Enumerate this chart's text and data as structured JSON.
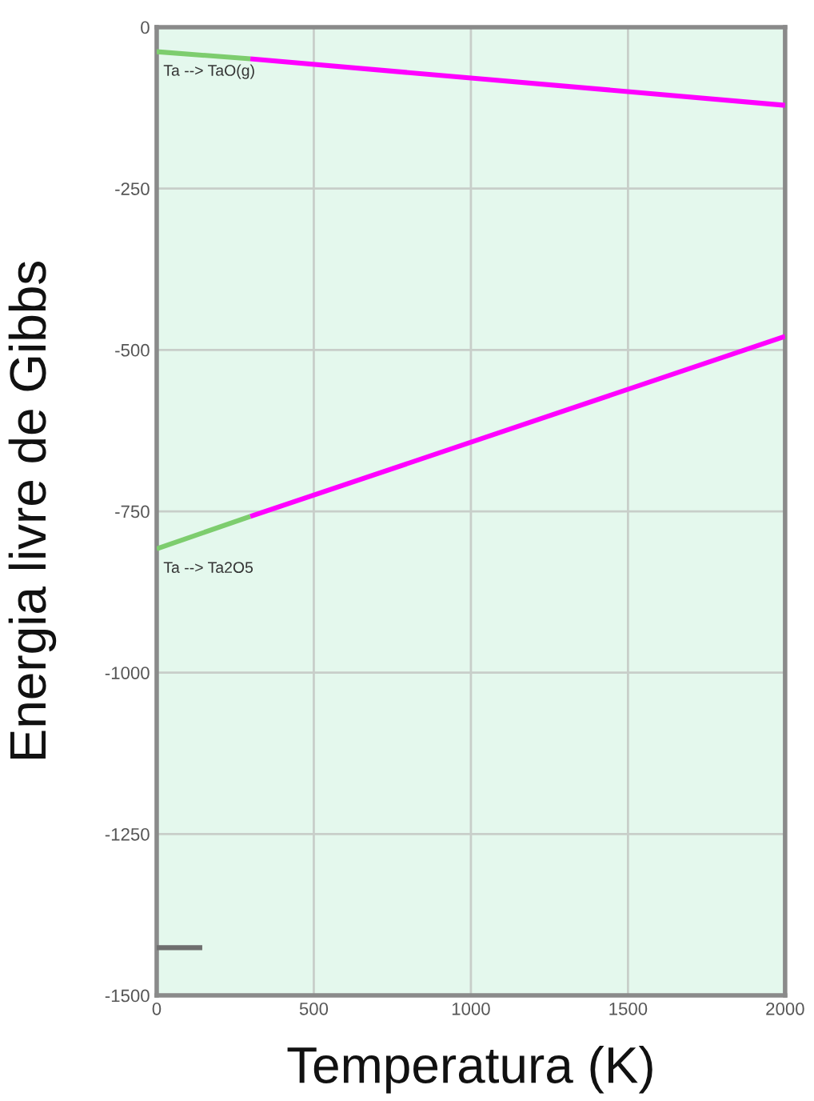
{
  "chart_data": {
    "type": "line",
    "xlabel": "Temperatura (K)",
    "ylabel": "Energia livre de Gibbs",
    "xlim": [
      0,
      2000
    ],
    "xticks": [
      0,
      500,
      1000,
      1500,
      2000
    ],
    "ylim": [
      -1500,
      0
    ],
    "yticks": [
      -1500,
      -1250,
      -1000,
      -750,
      -500,
      -250,
      0
    ],
    "grid": true,
    "legend": false,
    "marker": "none",
    "line_style": "solid",
    "series": [
      {
        "name": "Ta --> TaO(g)",
        "color": "#7dcd6e",
        "x": [
          0,
          298
        ],
        "values": [
          -38,
          -49
        ]
      },
      {
        "color": "#ff00ff",
        "x": [
          298,
          2000
        ],
        "values": [
          -49,
          -121
        ]
      },
      {
        "name": "Ta --> Ta2O5",
        "color": "#7dcd6e",
        "x": [
          0,
          298
        ],
        "values": [
          -808,
          -758
        ]
      },
      {
        "color": "#ff00ff",
        "x": [
          298,
          2000
        ],
        "values": [
          -758,
          -479
        ]
      },
      {
        "color": "#6e6e6e",
        "x": [
          0,
          145
        ],
        "values": [
          -1426,
          -1426
        ]
      }
    ]
  }
}
